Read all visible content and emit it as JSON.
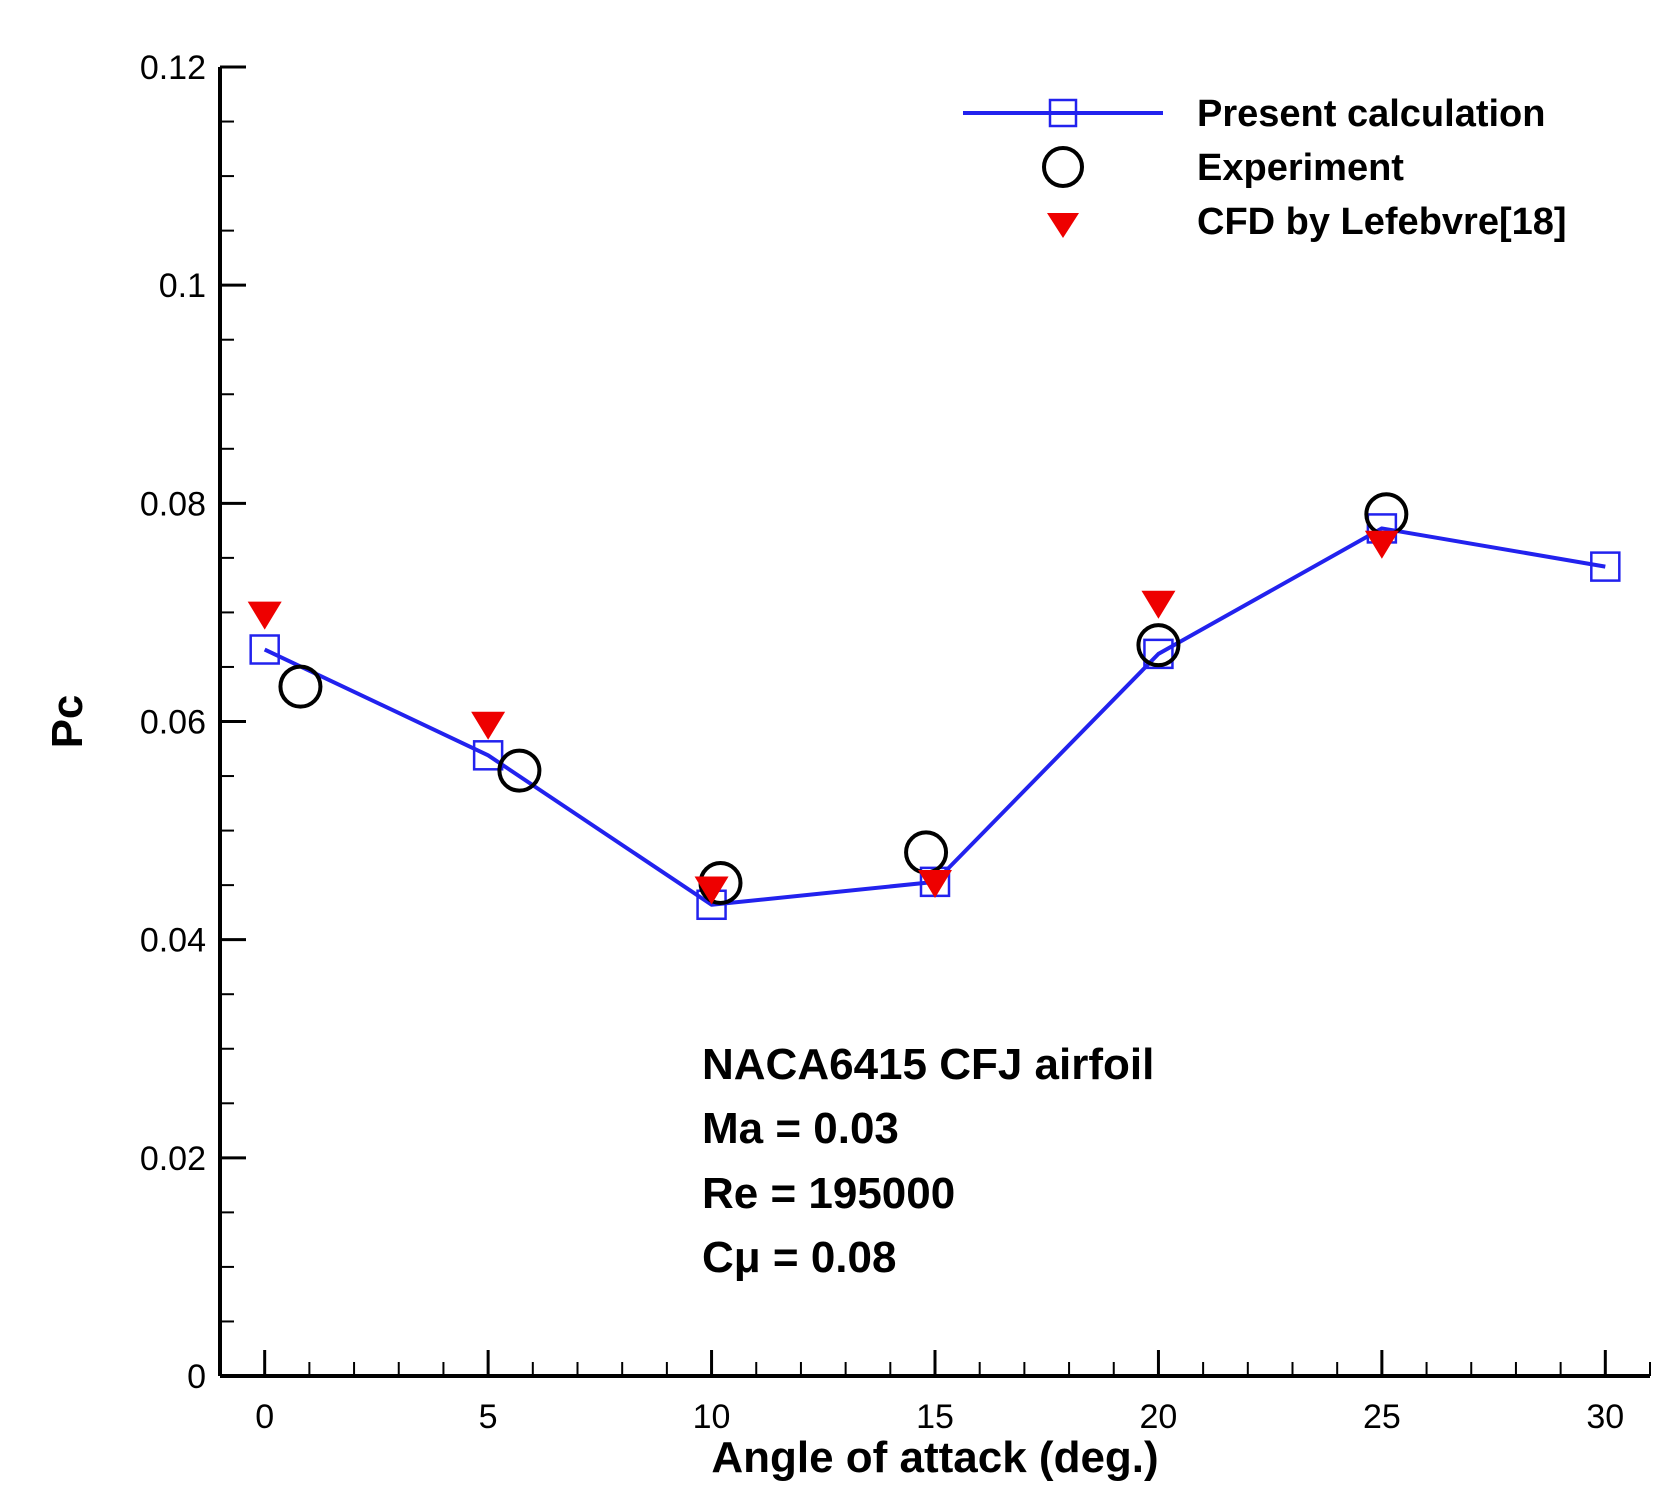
{
  "chart_data": {
    "type": "line",
    "xlabel": "Angle of attack (deg.)",
    "ylabel": "Pc",
    "xlim": [
      -1,
      31
    ],
    "ylim": [
      0,
      0.12
    ],
    "x_ticks": [
      0,
      5,
      10,
      15,
      20,
      25,
      30
    ],
    "x_tick_labels": [
      "0",
      "5",
      "10",
      "15",
      "20",
      "25",
      "30"
    ],
    "y_ticks": [
      0,
      0.02,
      0.04,
      0.06,
      0.08,
      0.1,
      0.12
    ],
    "y_tick_labels": [
      "0",
      "0.02",
      "0.04",
      "0.06",
      "0.08",
      "0.1",
      "0.12"
    ],
    "grid": false,
    "legend_position": "top-right",
    "series": [
      {
        "name": "Present calculation",
        "style": "line-square",
        "color": "#2222ee",
        "x": [
          0,
          5,
          10,
          15,
          20,
          25,
          30
        ],
        "y": [
          0.0666,
          0.0569,
          0.0432,
          0.0453,
          0.0662,
          0.0777,
          0.0742
        ]
      },
      {
        "name": "Experiment",
        "style": "circle",
        "color": "#000000",
        "x": [
          0.8,
          5.7,
          10.2,
          14.8,
          20.0,
          25.1
        ],
        "y": [
          0.0632,
          0.0555,
          0.0452,
          0.048,
          0.067,
          0.079
        ]
      },
      {
        "name": "CFD by Lefebvre[18]",
        "style": "triangle-down",
        "color": "#ee0000",
        "x": [
          0,
          5,
          10,
          15,
          20,
          25
        ],
        "y": [
          0.0698,
          0.0597,
          0.0446,
          0.0452,
          0.0708,
          0.0763
        ]
      }
    ],
    "annotations": [
      "NACA6415 CFJ airfoil",
      "Ma = 0.03",
      "Re = 195000",
      "Cμ = 0.08"
    ]
  }
}
